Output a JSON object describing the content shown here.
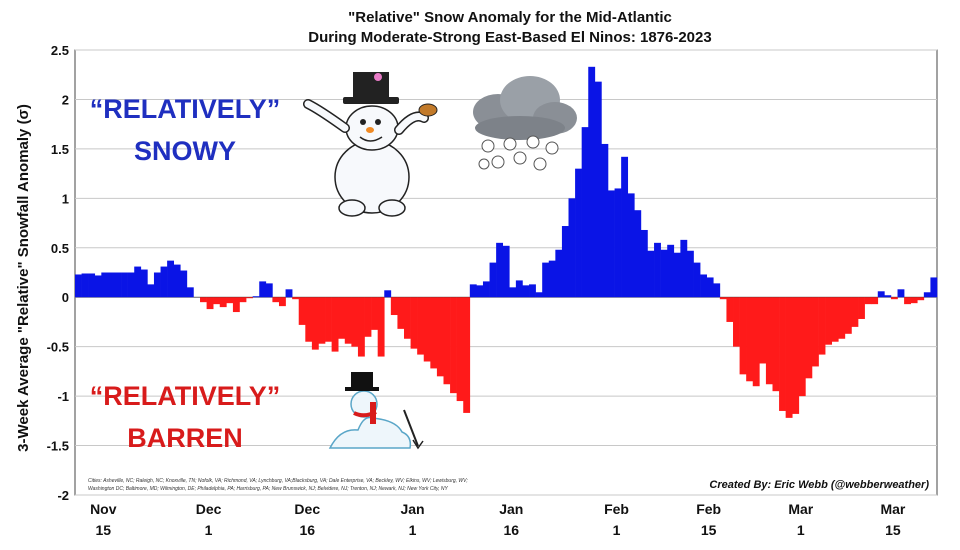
{
  "chart_data": {
    "type": "bar",
    "title_line1": "\"Relative\" Snow Anomaly for the Mid-Atlantic",
    "title_line2": "During Moderate-Strong East-Based El Ninos: 1876-2023",
    "ylabel": "3-Week Average \"Relative\" Snowfall Anomaly (σ)",
    "ylim": [
      -2,
      2.5
    ],
    "yticks": [
      "2.5",
      "2",
      "1.5",
      "1",
      "0.5",
      "0",
      "-0.5",
      "-1",
      "-1.5",
      "-2"
    ],
    "ytick_values": [
      2.5,
      2,
      1.5,
      1,
      0.5,
      0,
      -0.5,
      -1,
      -1.5,
      -2
    ],
    "grid": true,
    "x_start": "Nov 15",
    "x_end": "Mar 21",
    "xticks": [
      {
        "month": "Nov",
        "day": "15",
        "index": 0
      },
      {
        "month": "Dec",
        "day": "1",
        "index": 16
      },
      {
        "month": "Dec",
        "day": "16",
        "index": 31
      },
      {
        "month": "Jan",
        "day": "1",
        "index": 47
      },
      {
        "month": "Jan",
        "day": "16",
        "index": 62
      },
      {
        "month": "Feb",
        "day": "1",
        "index": 78
      },
      {
        "month": "Feb",
        "day": "15",
        "index": 92
      },
      {
        "month": "Mar",
        "day": "1",
        "index": 106
      },
      {
        "month": "Mar",
        "day": "15",
        "index": 120
      }
    ],
    "positive_color": "#0a14e6",
    "negative_color": "#ff1a1a",
    "values": [
      0.23,
      0.24,
      0.24,
      0.22,
      0.25,
      0.25,
      0.25,
      0.25,
      0.25,
      0.31,
      0.28,
      0.13,
      0.25,
      0.31,
      0.37,
      0.33,
      0.27,
      0.1,
      0.0,
      -0.05,
      -0.12,
      -0.07,
      -0.1,
      -0.06,
      -0.15,
      -0.05,
      -0.01,
      0.01,
      0.16,
      0.14,
      -0.05,
      -0.09,
      0.08,
      -0.02,
      -0.28,
      -0.45,
      -0.53,
      -0.47,
      -0.45,
      -0.55,
      -0.42,
      -0.47,
      -0.5,
      -0.6,
      -0.4,
      -0.33,
      -0.6,
      0.07,
      -0.18,
      -0.32,
      -0.42,
      -0.52,
      -0.58,
      -0.65,
      -0.72,
      -0.8,
      -0.88,
      -0.97,
      -1.05,
      -1.17,
      0.13,
      0.12,
      0.16,
      0.35,
      0.55,
      0.52,
      0.1,
      0.17,
      0.12,
      0.13,
      0.05,
      0.35,
      0.37,
      0.48,
      0.72,
      1.0,
      1.3,
      1.72,
      2.33,
      2.18,
      1.55,
      1.08,
      1.1,
      1.42,
      1.05,
      0.88,
      0.68,
      0.47,
      0.55,
      0.48,
      0.53,
      0.45,
      0.58,
      0.47,
      0.35,
      0.23,
      0.2,
      0.14,
      -0.02,
      -0.25,
      -0.5,
      -0.78,
      -0.85,
      -0.9,
      -0.67,
      -0.88,
      -0.95,
      -1.15,
      -1.22,
      -1.18,
      -1.0,
      -0.82,
      -0.7,
      -0.58,
      -0.48,
      -0.45,
      -0.42,
      -0.37,
      -0.3,
      -0.22,
      -0.07,
      -0.07,
      0.06,
      0.02,
      -0.02,
      0.08,
      -0.07,
      -0.06,
      -0.03,
      0.05,
      0.2
    ]
  },
  "annotations": {
    "snowy_line1": "“RELATIVELY”",
    "snowy_line2": "SNOWY",
    "barren_line1": "“RELATIVELY”",
    "barren_line2": "BARREN",
    "credit": "Created By: Eric Webb (@webberweather)",
    "cities_line1": "Cities: Asheville, NC; Raleigh, NC; Knoxville, TN; Nofolk, VA; Richmond, VA; Lynchburg, VA;Blacksburg, VA; Dale Enterprise, VA; Beckley, WV; Elkins, WV; Lewisburg, WV;",
    "cities_line2": "Washington DC; Baltimore, MD; Wilmington, DE; Philadelphia, PA; Harrisburg, PA; New Brunswick, NJ; Belvidere, NJ; Trenton, NJ; Newark, NJ; New York City, NY"
  },
  "icons": [
    "snowman-top-hat-icon",
    "snow-cloud-icon",
    "melting-snowman-icon"
  ]
}
